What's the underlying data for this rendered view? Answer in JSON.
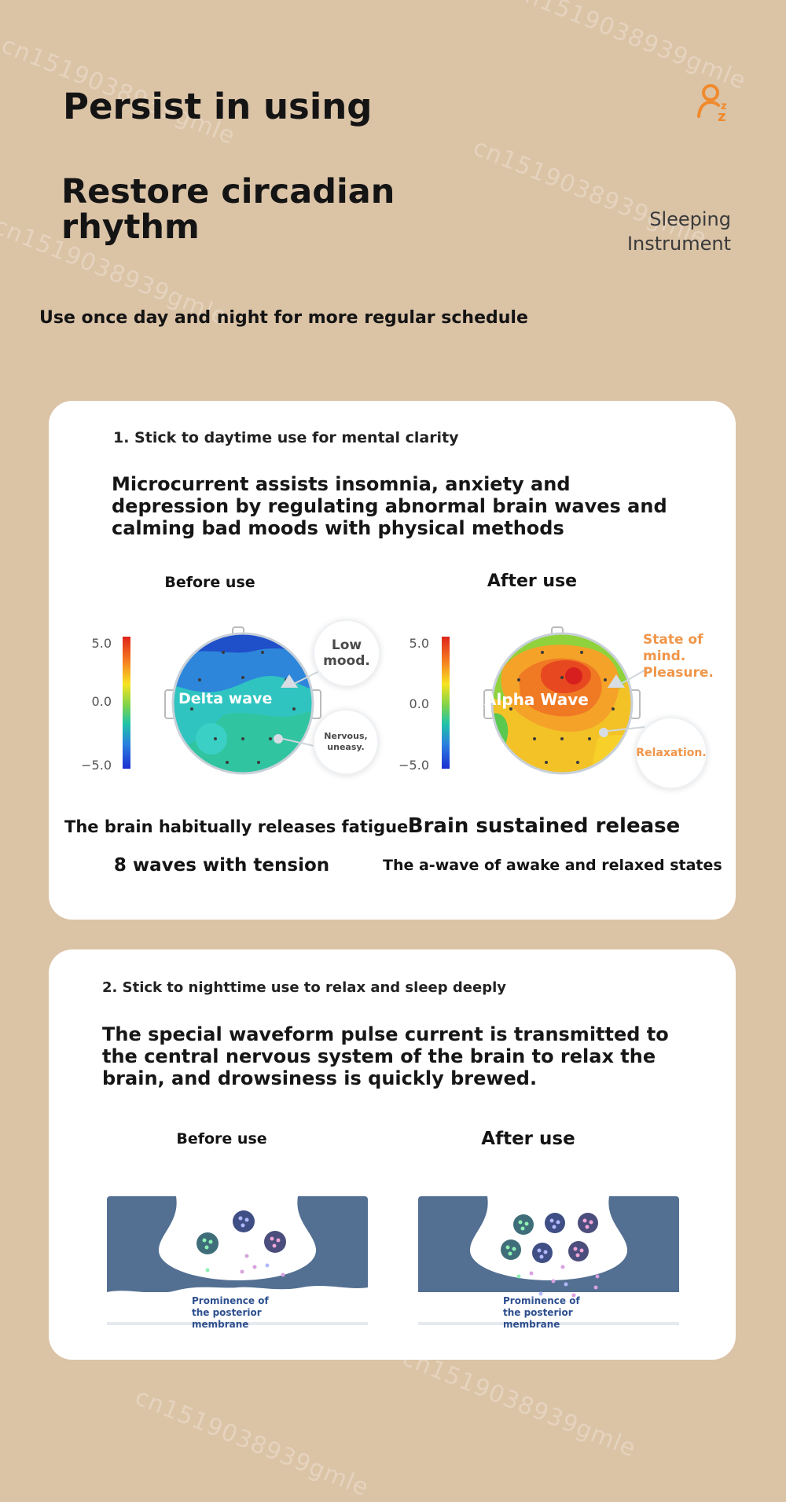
{
  "header": {
    "title_line": "Persist in using",
    "subtitle_line1": "Restore circadian",
    "subtitle_line2": "rhythm",
    "brand_line1": "Sleeping",
    "brand_line2": "Instrument",
    "tagline": "Use once day and night for more regular schedule",
    "logo_icon": "sleep-zz-icon",
    "accent_color": "#f08a2c"
  },
  "watermark_text": "cn1519038939gmle",
  "card1": {
    "step": "1. Stick to daytime use for mental clarity",
    "lead": "Microcurrent assists insomnia, anxiety and depression by regulating abnormal brain waves and calming bad moods with physical methods",
    "before_head": "Before use",
    "after_head": "After use",
    "before_map": {
      "ticks": [
        "5.0",
        "0.0",
        "−5.0"
      ],
      "wave_label": "Delta wave",
      "bubble_top": "Low mood.",
      "bubble_bottom": "Nervous, uneasy."
    },
    "after_map": {
      "ticks": [
        "5.0",
        "0.0",
        "−5.0"
      ],
      "wave_label": "Alpha Wave",
      "bubble_top": "State of mind. Pleasure.",
      "bubble_bottom": "Relaxation."
    },
    "caption_left_1": "The brain habitually releases fatigue",
    "caption_left_2": "8 waves with tension",
    "caption_right_1": "Brain sustained release",
    "caption_right_2": "The a-wave of awake and relaxed states"
  },
  "card2": {
    "step": "2. Stick to nighttime use to relax and sleep deeply",
    "lead": "The special waveform pulse current is transmitted to the central nervous system of the brain to relax the brain, and drowsiness is quickly brewed.",
    "before_head": "Before use",
    "after_head": "After use",
    "synapse_label": "Prominence of the posterior membrane"
  }
}
